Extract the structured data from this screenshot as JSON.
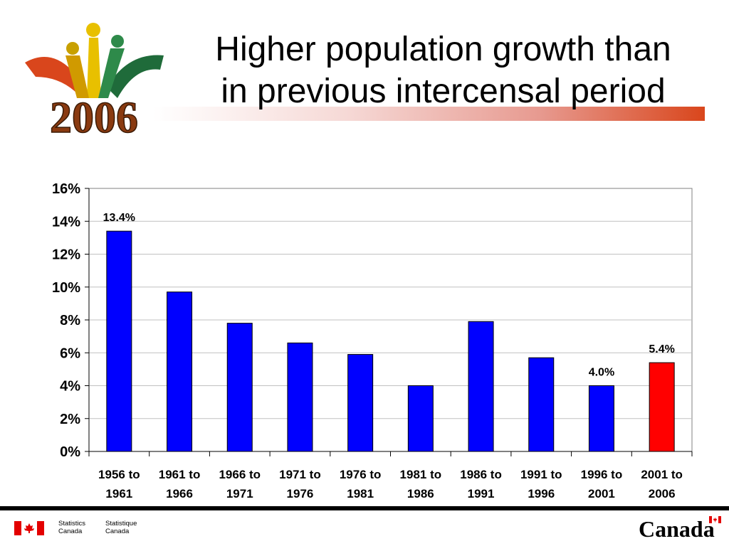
{
  "slide": {
    "title_line1": "Higher population growth than",
    "title_line2": "in previous intercensal period",
    "logo_year": "2006",
    "colors": {
      "bar": "#0000ff",
      "highlight_bar": "#ff0000",
      "title_band": "#d9461c"
    }
  },
  "footer": {
    "agency_en_line1": "Statistics",
    "agency_en_line2": "Canada",
    "agency_fr_line1": "Statistique",
    "agency_fr_line2": "Canada",
    "wordmark": "Canada",
    "flag_icon": "canada-flag-icon"
  },
  "chart_data": {
    "type": "bar",
    "title": "",
    "xlabel": "",
    "ylabel": "",
    "categories": [
      "1956 to 1961",
      "1961 to 1966",
      "1966 to 1971",
      "1971 to 1976",
      "1976 to 1981",
      "1981 to 1986",
      "1986 to 1991",
      "1991 to 1996",
      "1996 to 2001",
      "2001 to 2006"
    ],
    "category_lines": [
      [
        "1956 to",
        "1961"
      ],
      [
        "1961 to",
        "1966"
      ],
      [
        "1966 to",
        "1971"
      ],
      [
        "1971 to",
        "1976"
      ],
      [
        "1976 to",
        "1981"
      ],
      [
        "1981 to",
        "1986"
      ],
      [
        "1986 to",
        "1991"
      ],
      [
        "1991 to",
        "1996"
      ],
      [
        "1996 to",
        "2001"
      ],
      [
        "2001 to",
        "2006"
      ]
    ],
    "values": [
      13.4,
      9.7,
      7.8,
      6.6,
      5.9,
      4.0,
      7.9,
      5.7,
      4.0,
      5.4
    ],
    "data_labels": [
      "13.4%",
      null,
      null,
      null,
      null,
      null,
      null,
      null,
      "4.0%",
      "5.4%"
    ],
    "highlight_index": 9,
    "ylim": [
      0,
      16
    ],
    "y_ticks": [
      0,
      2,
      4,
      6,
      8,
      10,
      12,
      14,
      16
    ],
    "y_tick_labels": [
      "0%",
      "2%",
      "4%",
      "6%",
      "8%",
      "10%",
      "12%",
      "14%",
      "16%"
    ],
    "grid": true,
    "legend": "none"
  }
}
